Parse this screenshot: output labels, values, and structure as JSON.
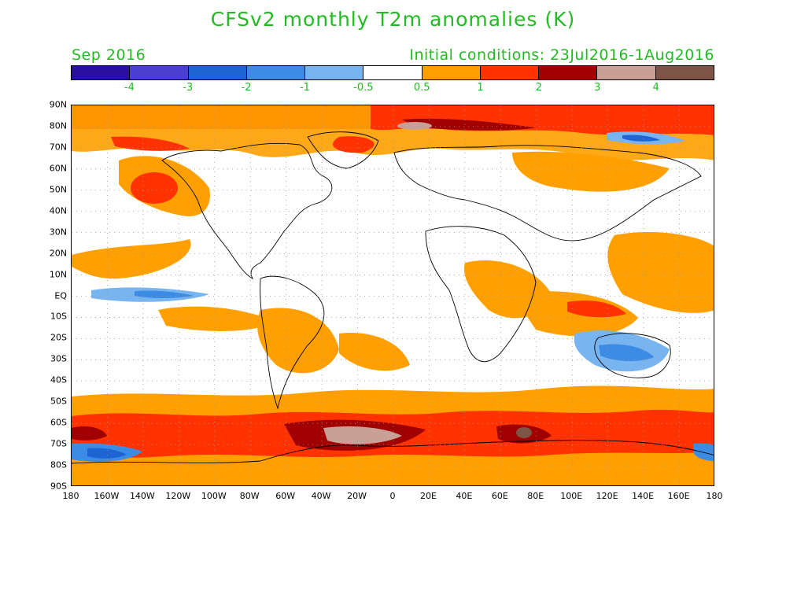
{
  "title": "CFSv2 monthly T2m anomalies (K)",
  "period": "Sep 2016",
  "initial_conditions": "Initial conditions: 23Jul2016-1Aug2016",
  "colorbar": {
    "colors": [
      "#2a0fa3",
      "#4a3fcf",
      "#1e64d2",
      "#3c8ce6",
      "#78b4f0",
      "#ffffff",
      "#ffa000",
      "#ff3200",
      "#a00000",
      "#c8a096",
      "#7d5546"
    ],
    "labels": [
      "-4",
      "-3",
      "-2",
      "-1",
      "-0.5",
      "0.5",
      "1",
      "2",
      "3",
      "4"
    ]
  },
  "axes": {
    "lat_labels": [
      "90N",
      "80N",
      "70N",
      "60N",
      "50N",
      "40N",
      "30N",
      "20N",
      "10N",
      "EQ",
      "10S",
      "20S",
      "30S",
      "40S",
      "50S",
      "60S",
      "70S",
      "80S",
      "90S"
    ],
    "lon_labels": [
      "180",
      "160W",
      "140W",
      "120W",
      "100W",
      "80W",
      "60W",
      "40W",
      "20W",
      "0",
      "20E",
      "40E",
      "60E",
      "80E",
      "100E",
      "120E",
      "140E",
      "160E",
      "180"
    ]
  }
}
